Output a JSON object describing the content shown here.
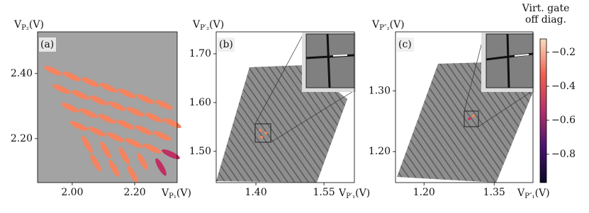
{
  "chart_data": [
    {
      "type": "heatmap",
      "panel_label": "(a)",
      "x_label": {
        "symbol": "V",
        "subscript": "P₁",
        "unit": "(V)"
      },
      "y_label": {
        "symbol": "V",
        "subscript": "P₂",
        "unit": "(V)"
      },
      "xlim": [
        1.889,
        2.336
      ],
      "ylim": [
        2.065,
        2.528
      ],
      "xticks": [
        {
          "value": 2.0,
          "label": "2.00"
        },
        {
          "value": 2.2,
          "label": "2.20"
        }
      ],
      "yticks": [
        {
          "value": 2.2,
          "label": "2.20"
        },
        {
          "value": 2.4,
          "label": "2.40"
        }
      ]
    },
    {
      "type": "heatmap",
      "panel_label": "(b)",
      "x_label": {
        "symbol": "V",
        "subscript": "P′₁",
        "unit": "(V)"
      },
      "y_label": {
        "symbol": "V",
        "subscript": "P′₂",
        "unit": "(V)"
      },
      "xlim": [
        1.3125,
        1.617
      ],
      "ylim": [
        1.436,
        1.745
      ],
      "xticks": [
        {
          "value": 1.4,
          "label": "1.40"
        },
        1.55
      ],
      "yticks": [
        {
          "value": 1.5,
          "label": "1.50"
        },
        {
          "value": 1.6,
          "label": "1.60"
        },
        {
          "value": 1.7,
          "label": "1.70"
        }
      ]
    },
    {
      "type": "heatmap",
      "panel_label": "(c)",
      "x_label": {
        "symbol": "V",
        "subscript": "P″₁",
        "unit": "(V)"
      },
      "y_label": {
        "symbol": "V",
        "subscript": "P″₂",
        "unit": "(V)"
      },
      "xlim": [
        1.139,
        1.433
      ],
      "ylim": [
        1.149,
        1.397
      ],
      "xticks": [
        {
          "value": 1.2,
          "label": "1.20"
        },
        1.35
      ],
      "yticks": [
        {
          "value": 1.2,
          "label": "1.20"
        },
        {
          "value": 1.3,
          "label": "1.30"
        }
      ],
      "colorbar": {
        "title": [
          "Virt. gate",
          "off diag."
        ],
        "lim": [
          -0.967,
          -0.121
        ],
        "ticks": [
          {
            "value": -0.8,
            "label": "−0.8"
          },
          {
            "value": -0.6,
            "label": "−0.6"
          },
          {
            "value": -0.4,
            "label": "−0.4"
          },
          {
            "value": -0.2,
            "label": "−0.2"
          }
        ]
      }
    }
  ]
}
